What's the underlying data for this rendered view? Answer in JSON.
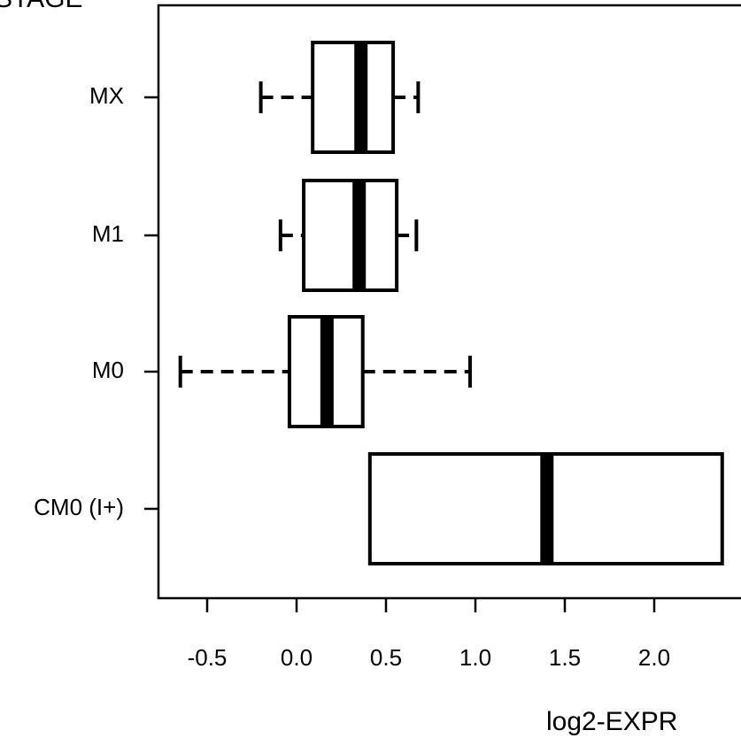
{
  "chart_data": {
    "type": "boxplot",
    "orientation": "horizontal",
    "title": "STAGE",
    "xlabel": "log2-EXPR",
    "xlim": [
      -0.72,
      2.4
    ],
    "x_ticks": [
      -0.5,
      0.0,
      0.5,
      1.0,
      1.5,
      2.0
    ],
    "x_tick_labels": [
      "-0.5",
      "0.0",
      "0.5",
      "1.0",
      "1.5",
      "2.0"
    ],
    "categories": [
      "MX",
      "M1",
      "M0",
      "CM0 (I+)"
    ],
    "boxes": [
      {
        "category": "MX",
        "whisker_low": -0.2,
        "q1": 0.09,
        "median": 0.36,
        "q3": 0.54,
        "whisker_high": 0.68
      },
      {
        "category": "M1",
        "whisker_low": -0.09,
        "q1": 0.04,
        "median": 0.35,
        "q3": 0.56,
        "whisker_high": 0.67
      },
      {
        "category": "M0",
        "whisker_low": -0.65,
        "q1": -0.04,
        "median": 0.17,
        "q3": 0.37,
        "whisker_high": 0.97
      },
      {
        "category": "CM0 (I+)",
        "whisker_low": 0.41,
        "q1": 0.41,
        "median": 1.4,
        "q3": 2.38,
        "whisker_high": 2.38
      }
    ],
    "grid": false,
    "legend": "none"
  }
}
